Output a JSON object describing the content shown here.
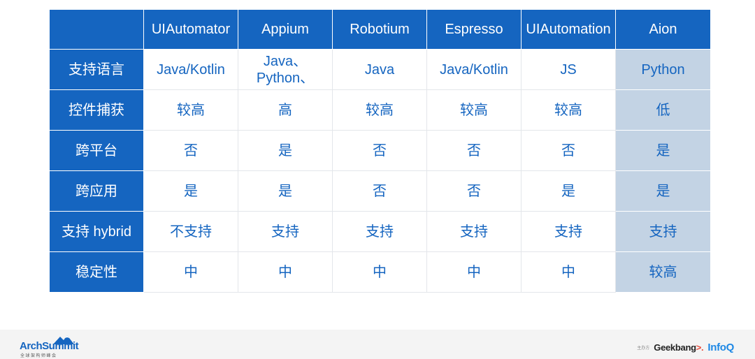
{
  "table": {
    "columns": [
      "UIAutomator",
      "Appium",
      "Robotium",
      "Espresso",
      "UIAutomation",
      "Aion"
    ],
    "highlighted_column": "Aion",
    "rows": [
      {
        "label": "支持语言",
        "cells": [
          [
            "Java/Kotlin"
          ],
          [
            "Java、",
            "Python、"
          ],
          [
            "Java"
          ],
          [
            "Java/Kotlin"
          ],
          [
            "JS"
          ],
          [
            "Python"
          ]
        ]
      },
      {
        "label": "控件捕获",
        "cells": [
          [
            "较高"
          ],
          [
            "高"
          ],
          [
            "较高"
          ],
          [
            "较高"
          ],
          [
            "较高"
          ],
          [
            "低"
          ]
        ]
      },
      {
        "label": "跨平台",
        "cells": [
          [
            "否"
          ],
          [
            "是"
          ],
          [
            "否"
          ],
          [
            "否"
          ],
          [
            "否"
          ],
          [
            "是"
          ]
        ]
      },
      {
        "label": "跨应用",
        "cells": [
          [
            "是"
          ],
          [
            "是"
          ],
          [
            "否"
          ],
          [
            "否"
          ],
          [
            "是"
          ],
          [
            "是"
          ]
        ]
      },
      {
        "label": "支持 hybrid",
        "cells": [
          [
            "不支持"
          ],
          [
            "支持"
          ],
          [
            "支持"
          ],
          [
            "支持"
          ],
          [
            "支持"
          ],
          [
            "支持"
          ]
        ]
      },
      {
        "label": "稳定性",
        "cells": [
          [
            "中"
          ],
          [
            "中"
          ],
          [
            "中"
          ],
          [
            "中"
          ],
          [
            "中"
          ],
          [
            "较高"
          ]
        ]
      }
    ]
  },
  "footer": {
    "logo_main": "ArchSummit",
    "logo_sub": "全球架构师峰会",
    "partner_caption": "主办方",
    "partner_geek": "Geekbang",
    "partner_geek_mark": ">.",
    "partner_infoq": "InfoQ"
  },
  "colors": {
    "header_blue": "#1565c0",
    "cell_text_blue": "#1565c0",
    "highlight_bg": "#c3d3e4"
  }
}
